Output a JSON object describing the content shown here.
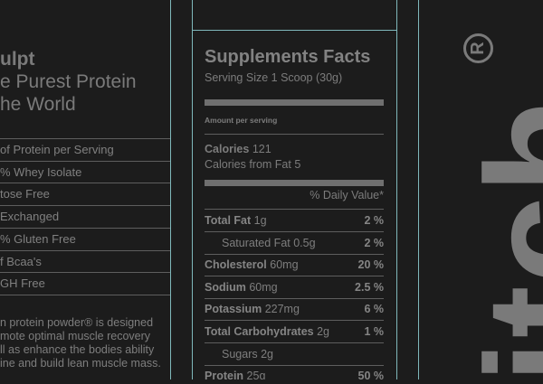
{
  "left_panel": {
    "title_lines": [
      "ulpt",
      "e Purest Protein",
      "he World"
    ],
    "features": [
      "of Protein per Serving",
      "% Whey Isolate",
      "tose Free",
      "Exchanged",
      "% Gluten Free",
      "f Bcaa's",
      "GH Free"
    ],
    "description_lines": [
      "n protein powder® is designed",
      "mote optimal muscle recovery",
      "ll as enhance the bodies ability",
      "ine and build lean muscle mass."
    ]
  },
  "supplement_facts": {
    "title": "Supplements Facts",
    "serving_size": "Serving Size 1 Scoop (30g)",
    "amount_per_serving": "Amount per serving",
    "calories_label": "Calories",
    "calories_value": "121",
    "calories_from_fat": "Calories from Fat 5",
    "daily_value_header": "% Daily Value*",
    "rows": [
      {
        "name": "Total Fat",
        "amount": "1g",
        "pct": "2 %",
        "indent": false
      },
      {
        "name": "Saturated Fat",
        "amount": "0.5g",
        "pct": "2 %",
        "indent": true
      },
      {
        "name": "Cholesterol",
        "amount": "60mg",
        "pct": "20 %",
        "indent": false
      },
      {
        "name": "Sodium",
        "amount": "60mg",
        "pct": "2.5 %",
        "indent": false
      },
      {
        "name": "Potassium",
        "amount": "227mg",
        "pct": "6 %",
        "indent": false
      },
      {
        "name": "Total Carbohydrates",
        "amount": "2g",
        "pct": "1 %",
        "indent": false
      },
      {
        "name": "Sugars",
        "amount": "2g",
        "pct": "",
        "indent": true
      },
      {
        "name": "Protein",
        "amount": "25g",
        "pct": "50 %",
        "indent": false
      }
    ]
  },
  "brand": {
    "text": "itch",
    "registered_mark": "R"
  },
  "colors": {
    "background": "#1c1c1c",
    "text": "#7c7c7c",
    "guide_lines": "#7fb8bb",
    "rules": "#5e5e5e"
  }
}
